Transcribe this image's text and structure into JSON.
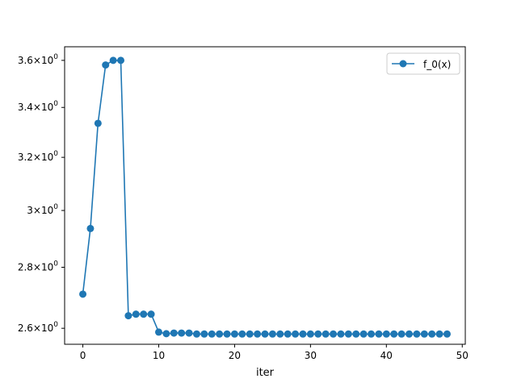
{
  "chart_data": {
    "type": "line",
    "title": "",
    "xlabel": "iter",
    "ylabel": "",
    "yscale": "log",
    "xlim": [
      -2.4,
      50.4
    ],
    "ylim": [
      2.55,
      3.66
    ],
    "grid": false,
    "legend_position": "top-right",
    "x_ticks": [
      0,
      10,
      20,
      30,
      40,
      50
    ],
    "y_ticks": [
      {
        "value": 2.6,
        "mantissa": "2.6"
      },
      {
        "value": 2.8,
        "mantissa": "2.8"
      },
      {
        "value": 3.0,
        "mantissa": "3"
      },
      {
        "value": 3.2,
        "mantissa": "3.2"
      },
      {
        "value": 3.4,
        "mantissa": "3.4"
      },
      {
        "value": 3.6,
        "mantissa": "3.6"
      }
    ],
    "y_tick_suffix": "×10",
    "y_tick_exponent": "0",
    "series": [
      {
        "name": "f_0(x)",
        "color": "#1f77b4",
        "marker": "circle",
        "x": [
          0,
          1,
          2,
          3,
          4,
          5,
          6,
          7,
          8,
          9,
          10,
          11,
          12,
          13,
          14,
          15,
          16,
          17,
          18,
          19,
          20,
          21,
          22,
          23,
          24,
          25,
          26,
          27,
          28,
          29,
          30,
          31,
          32,
          33,
          34,
          35,
          36,
          37,
          38,
          39,
          40,
          41,
          42,
          43,
          44,
          45,
          46,
          47,
          48
        ],
        "y": [
          2.71,
          2.935,
          3.335,
          3.58,
          3.6,
          3.6,
          2.64,
          2.645,
          2.645,
          2.645,
          2.588,
          2.583,
          2.585,
          2.585,
          2.585,
          2.582,
          2.582,
          2.582,
          2.582,
          2.582,
          2.582,
          2.582,
          2.582,
          2.582,
          2.582,
          2.582,
          2.582,
          2.582,
          2.582,
          2.582,
          2.582,
          2.582,
          2.582,
          2.582,
          2.582,
          2.582,
          2.582,
          2.582,
          2.582,
          2.582,
          2.582,
          2.582,
          2.582,
          2.582,
          2.582,
          2.582,
          2.582,
          2.582,
          2.582
        ]
      }
    ]
  }
}
